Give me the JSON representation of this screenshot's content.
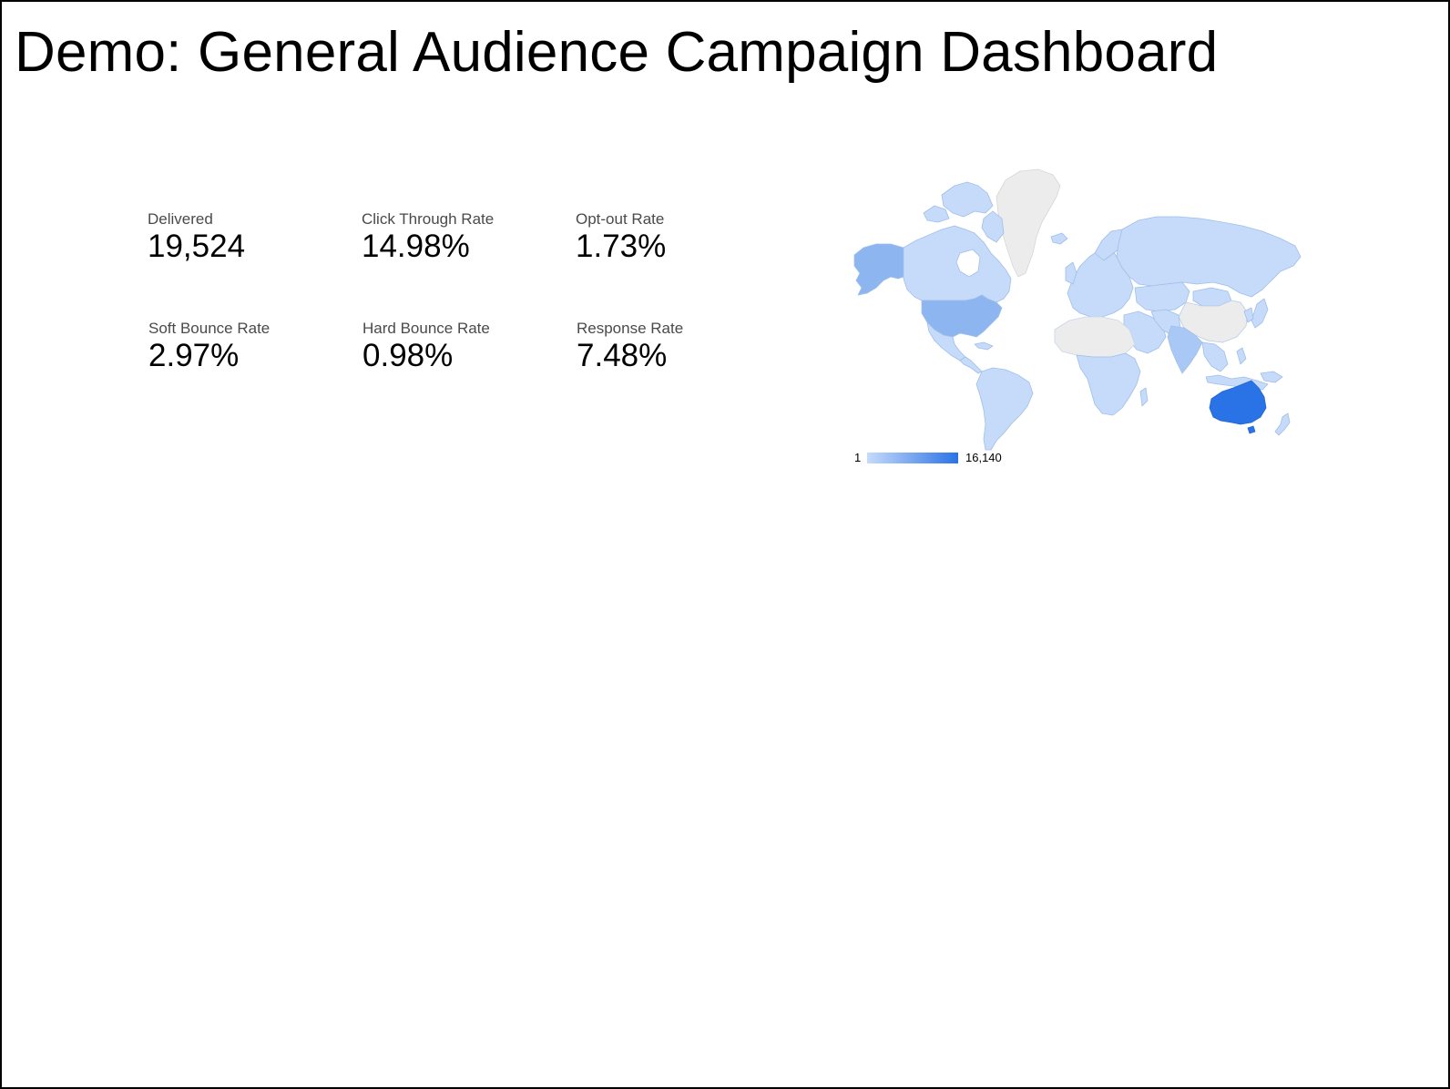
{
  "page": {
    "title": "Demo: General Audience Campaign Dashboard"
  },
  "scorecards": [
    {
      "label": "Delivered",
      "value": "19,524"
    },
    {
      "label": "Click Through Rate",
      "value": "14.98%"
    },
    {
      "label": "Opt-out Rate",
      "value": "1.73%"
    },
    {
      "label": "Soft Bounce Rate",
      "value": "2.97%"
    },
    {
      "label": "Hard Bounce Rate",
      "value": "0.98%"
    },
    {
      "label": "Response Rate",
      "value": "7.48%"
    }
  ],
  "geo_map": {
    "legend_min": "1",
    "legend_max": "16,140",
    "colors": {
      "scale_low": "#c6dafa",
      "scale_mid": "#8db6f1",
      "scale_high": "#2a73e6",
      "no_data": "#ececec",
      "border": "#9fbfe8"
    },
    "regions": [
      {
        "name": "Australia",
        "level": "high"
      },
      {
        "name": "United States",
        "level": "mid"
      },
      {
        "name": "Alaska",
        "level": "mid"
      },
      {
        "name": "Canada",
        "level": "low"
      },
      {
        "name": "India",
        "level": "mid-low"
      },
      {
        "name": "Greenland",
        "level": "no-data"
      }
    ]
  }
}
